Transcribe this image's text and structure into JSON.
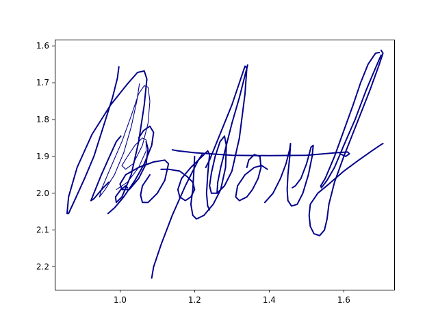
{
  "chart_data": {
    "type": "line",
    "title": "",
    "xlabel": "",
    "ylabel": "",
    "xlim": [
      0.825,
      1.735
    ],
    "ylim": [
      2.262,
      1.583
    ],
    "y_inverted": true,
    "grid": false,
    "x_ticks": [
      {
        "value": 1.0,
        "label": "1.0"
      },
      {
        "value": 1.2,
        "label": "1.2"
      },
      {
        "value": 1.4,
        "label": "1.4"
      },
      {
        "value": 1.6,
        "label": "1.6"
      }
    ],
    "y_ticks": [
      {
        "value": 1.6,
        "label": "1.6"
      },
      {
        "value": 1.7,
        "label": "1.7"
      },
      {
        "value": 1.8,
        "label": "1.8"
      },
      {
        "value": 1.9,
        "label": "1.9"
      },
      {
        "value": 2.0,
        "label": "2.0"
      },
      {
        "value": 2.1,
        "label": "2.1"
      },
      {
        "value": 2.2,
        "label": "2.2"
      }
    ],
    "color": "#00008b",
    "strokes": [
      {
        "width": "thick",
        "points": [
          [
            0.997,
            1.657
          ],
          [
            0.993,
            1.687
          ],
          [
            0.98,
            1.74
          ],
          [
            0.955,
            1.82
          ],
          [
            0.93,
            1.9
          ],
          [
            0.905,
            1.96
          ],
          [
            0.878,
            2.02
          ],
          [
            0.862,
            2.055
          ],
          [
            0.858,
            2.055
          ],
          [
            0.862,
            2.01
          ],
          [
            0.885,
            1.93
          ],
          [
            0.925,
            1.84
          ],
          [
            0.975,
            1.76
          ],
          [
            1.02,
            1.703
          ],
          [
            1.047,
            1.672
          ],
          [
            1.065,
            1.668
          ],
          [
            1.072,
            1.69
          ],
          [
            1.065,
            1.76
          ],
          [
            1.05,
            1.86
          ],
          [
            1.03,
            1.95
          ],
          [
            1.005,
            2.01
          ],
          [
            0.99,
            2.025
          ],
          [
            0.988,
            2.01
          ],
          [
            1.002,
            1.99
          ],
          [
            1.015,
            1.98
          ],
          [
            1.02,
            1.985
          ]
        ]
      },
      {
        "width": "thin",
        "points": [
          [
            1.052,
            1.703
          ],
          [
            1.045,
            1.75
          ],
          [
            1.03,
            1.82
          ],
          [
            1.01,
            1.89
          ],
          [
            0.985,
            1.95
          ],
          [
            0.96,
            1.99
          ],
          [
            0.945,
            2.01
          ],
          [
            0.95,
            1.99
          ],
          [
            0.975,
            1.93
          ],
          [
            1.005,
            1.86
          ],
          [
            1.03,
            1.79
          ],
          [
            1.05,
            1.73
          ],
          [
            1.065,
            1.708
          ],
          [
            1.075,
            1.712
          ],
          [
            1.08,
            1.75
          ],
          [
            1.075,
            1.81
          ],
          [
            1.06,
            1.87
          ],
          [
            1.035,
            1.92
          ],
          [
            1.015,
            1.935
          ],
          [
            1.005,
            1.925
          ],
          [
            1.02,
            1.9
          ],
          [
            1.04,
            1.87
          ],
          [
            1.06,
            1.85
          ],
          [
            1.07,
            1.855
          ],
          [
            1.07,
            1.885
          ],
          [
            1.05,
            1.93
          ],
          [
            1.02,
            1.97
          ],
          [
            0.99,
            1.99
          ]
        ]
      },
      {
        "width": "thick",
        "points": [
          [
            1.002,
            1.845
          ],
          [
            0.99,
            1.86
          ],
          [
            0.972,
            1.9
          ],
          [
            0.95,
            1.95
          ],
          [
            0.93,
            2.0
          ],
          [
            0.922,
            2.02
          ],
          [
            0.93,
            2.015
          ],
          [
            0.955,
            1.985
          ],
          [
            0.97,
            1.97
          ]
        ]
      },
      {
        "width": "thick",
        "points": [
          [
            0.968,
            2.055
          ],
          [
            0.985,
            2.04
          ],
          [
            1.01,
            2.01
          ],
          [
            1.04,
            1.965
          ],
          [
            1.065,
            1.92
          ],
          [
            1.085,
            1.87
          ],
          [
            1.09,
            1.835
          ],
          [
            1.08,
            1.818
          ],
          [
            1.063,
            1.83
          ],
          [
            1.05,
            1.85
          ]
        ]
      },
      {
        "width": "thick",
        "points": [
          [
            1.07,
            1.86
          ],
          [
            1.075,
            1.88
          ],
          [
            1.07,
            1.92
          ],
          [
            1.05,
            1.96
          ],
          [
            1.025,
            1.99
          ],
          [
            1.005,
            1.99
          ],
          [
            1.0,
            1.975
          ],
          [
            1.015,
            1.95
          ],
          [
            1.05,
            1.93
          ],
          [
            1.09,
            1.915
          ],
          [
            1.12,
            1.91
          ],
          [
            1.13,
            1.92
          ],
          [
            1.12,
            1.965
          ],
          [
            1.1,
            2.0
          ],
          [
            1.075,
            2.025
          ],
          [
            1.06,
            2.025
          ],
          [
            1.055,
            2.005
          ],
          [
            1.06,
            1.98
          ],
          [
            1.08,
            1.95
          ]
        ]
      },
      {
        "width": "thick",
        "points": [
          [
            1.11,
            1.935
          ],
          [
            1.13,
            1.935
          ],
          [
            1.16,
            1.94
          ],
          [
            1.18,
            1.955
          ],
          [
            1.195,
            1.97
          ],
          [
            1.2,
            1.99
          ],
          [
            1.19,
            2.01
          ],
          [
            1.175,
            2.02
          ],
          [
            1.16,
            2.01
          ],
          [
            1.155,
            1.99
          ],
          [
            1.165,
            1.96
          ],
          [
            1.19,
            1.93
          ],
          [
            1.21,
            1.91
          ],
          [
            1.22,
            1.895
          ]
        ]
      },
      {
        "width": "thick",
        "points": [
          [
            1.085,
            2.23
          ],
          [
            1.09,
            2.2
          ],
          [
            1.11,
            2.14
          ],
          [
            1.14,
            2.06
          ],
          [
            1.175,
            1.98
          ],
          [
            1.21,
            1.91
          ],
          [
            1.235,
            1.885
          ],
          [
            1.24,
            1.895
          ],
          [
            1.235,
            1.95
          ],
          [
            1.232,
            2.0
          ],
          [
            1.235,
            2.035
          ],
          [
            1.24,
            2.045
          ]
        ]
      },
      {
        "width": "thick",
        "points": [
          [
            1.2,
            1.9
          ],
          [
            1.198,
            1.94
          ],
          [
            1.195,
            1.99
          ],
          [
            1.19,
            2.03
          ],
          [
            1.195,
            2.06
          ],
          [
            1.205,
            2.07
          ],
          [
            1.225,
            2.06
          ],
          [
            1.25,
            2.03
          ],
          [
            1.27,
            1.99
          ],
          [
            1.283,
            1.93
          ],
          [
            1.285,
            1.87
          ],
          [
            1.28,
            1.845
          ],
          [
            1.268,
            1.86
          ],
          [
            1.255,
            1.9
          ],
          [
            1.245,
            1.945
          ],
          [
            1.24,
            1.98
          ],
          [
            1.245,
            2.0
          ],
          [
            1.26,
            2.0
          ],
          [
            1.28,
            1.98
          ],
          [
            1.3,
            1.94
          ],
          [
            1.32,
            1.85
          ],
          [
            1.335,
            1.73
          ],
          [
            1.34,
            1.66
          ],
          [
            1.335,
            1.655
          ],
          [
            1.32,
            1.7
          ],
          [
            1.3,
            1.76
          ],
          [
            1.28,
            1.81
          ],
          [
            1.26,
            1.86
          ],
          [
            1.24,
            1.91
          ],
          [
            1.23,
            1.93
          ]
        ]
      },
      {
        "width": "thick",
        "points": [
          [
            1.342,
            1.652
          ],
          [
            1.335,
            1.68
          ],
          [
            1.32,
            1.74
          ],
          [
            1.3,
            1.81
          ],
          [
            1.285,
            1.87
          ],
          [
            1.27,
            1.93
          ],
          [
            1.262,
            1.97
          ],
          [
            1.26,
            2.0
          ]
        ]
      },
      {
        "width": "thick",
        "points": [
          [
            1.14,
            1.882
          ],
          [
            1.155,
            1.885
          ],
          [
            1.2,
            1.89
          ],
          [
            1.3,
            1.897
          ],
          [
            1.4,
            1.898
          ],
          [
            1.5,
            1.897
          ],
          [
            1.58,
            1.89
          ],
          [
            1.61,
            1.888
          ],
          [
            1.615,
            1.893
          ],
          [
            1.605,
            1.9
          ],
          [
            1.59,
            1.893
          ]
        ]
      },
      {
        "width": "thick",
        "points": [
          [
            1.34,
            1.93
          ],
          [
            1.345,
            1.91
          ],
          [
            1.36,
            1.895
          ],
          [
            1.375,
            1.9
          ],
          [
            1.378,
            1.93
          ],
          [
            1.37,
            1.96
          ],
          [
            1.355,
            1.99
          ],
          [
            1.34,
            2.01
          ],
          [
            1.32,
            2.02
          ],
          [
            1.31,
            2.01
          ],
          [
            1.315,
            1.98
          ],
          [
            1.335,
            1.95
          ],
          [
            1.36,
            1.93
          ],
          [
            1.38,
            1.925
          ],
          [
            1.395,
            1.935
          ]
        ]
      },
      {
        "width": "thick",
        "points": [
          [
            1.388,
            2.025
          ],
          [
            1.41,
            2.0
          ],
          [
            1.43,
            1.96
          ],
          [
            1.445,
            1.92
          ],
          [
            1.455,
            1.88
          ],
          [
            1.457,
            1.865
          ],
          [
            1.455,
            1.9
          ],
          [
            1.45,
            1.95
          ],
          [
            1.448,
            1.99
          ],
          [
            1.45,
            2.02
          ],
          [
            1.46,
            2.035
          ],
          [
            1.475,
            2.03
          ],
          [
            1.49,
            2.0
          ],
          [
            1.505,
            1.95
          ],
          [
            1.515,
            1.9
          ],
          [
            1.518,
            1.87
          ],
          [
            1.512,
            1.875
          ],
          [
            1.5,
            1.92
          ],
          [
            1.485,
            1.96
          ],
          [
            1.47,
            1.98
          ],
          [
            1.462,
            1.985
          ]
        ]
      },
      {
        "width": "thick",
        "points": [
          [
            1.7,
            1.612
          ],
          [
            1.705,
            1.62
          ],
          [
            1.695,
            1.65
          ],
          [
            1.67,
            1.72
          ],
          [
            1.635,
            1.81
          ],
          [
            1.6,
            1.9
          ],
          [
            1.575,
            1.97
          ],
          [
            1.56,
            2.03
          ],
          [
            1.555,
            2.07
          ],
          [
            1.548,
            2.1
          ],
          [
            1.535,
            2.115
          ],
          [
            1.52,
            2.11
          ],
          [
            1.51,
            2.09
          ],
          [
            1.507,
            2.06
          ],
          [
            1.51,
            2.03
          ],
          [
            1.53,
            2.0
          ],
          [
            1.56,
            1.975
          ],
          [
            1.6,
            1.94
          ],
          [
            1.64,
            1.91
          ],
          [
            1.675,
            1.885
          ],
          [
            1.7,
            1.868
          ],
          [
            1.705,
            1.865
          ]
        ]
      },
      {
        "width": "thick",
        "points": [
          [
            1.695,
            1.618
          ],
          [
            1.685,
            1.62
          ],
          [
            1.665,
            1.65
          ],
          [
            1.645,
            1.7
          ],
          [
            1.625,
            1.76
          ],
          [
            1.6,
            1.83
          ],
          [
            1.575,
            1.9
          ],
          [
            1.55,
            1.96
          ],
          [
            1.538,
            1.98
          ],
          [
            1.54,
            1.985
          ],
          [
            1.555,
            1.965
          ],
          [
            1.575,
            1.93
          ],
          [
            1.6,
            1.87
          ],
          [
            1.63,
            1.8
          ],
          [
            1.66,
            1.72
          ],
          [
            1.685,
            1.66
          ],
          [
            1.7,
            1.625
          ]
        ]
      }
    ]
  }
}
